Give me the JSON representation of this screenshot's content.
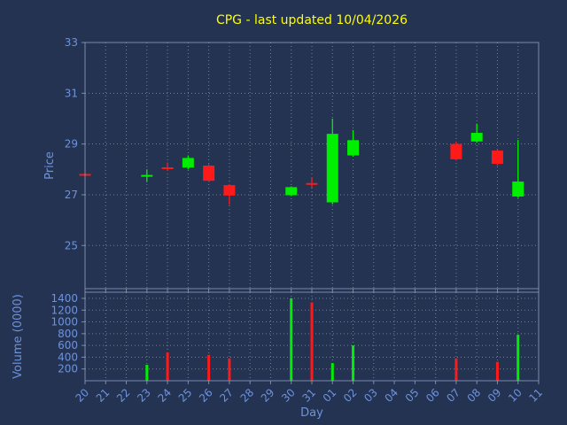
{
  "colors": {
    "background": "#243352",
    "title": "#ffff00",
    "label": "#6e93dc",
    "grid": "#c8d0e0",
    "spine": "#8a9ab8",
    "up": "#00ef00",
    "down": "#ff1a1a"
  },
  "chart_data": {
    "type": "candlestick",
    "title": "CPG - last updated 10/04/2026",
    "xlabel": "Day",
    "ylabel_price": "Price",
    "ylabel_volume": "Volume (0000)",
    "grid": "dotted",
    "legend": "none",
    "x_ticks": [
      "20",
      "21",
      "22",
      "23",
      "24",
      "25",
      "26",
      "27",
      "28",
      "29",
      "30",
      "31",
      "01",
      "02",
      "03",
      "04",
      "05",
      "06",
      "07",
      "08",
      "09",
      "10",
      "11"
    ],
    "price_ticks": [
      25,
      27,
      29,
      31,
      33
    ],
    "price_range": [
      23.3,
      33
    ],
    "volume_ticks": [
      200,
      400,
      600,
      800,
      1000,
      1200,
      1400
    ],
    "volume_range": [
      0,
      1505
    ],
    "candles": [
      {
        "day": "20",
        "open": 27.82,
        "high": 27.84,
        "low": 27.8,
        "close": 27.78
      },
      {
        "day": "23",
        "open": 27.72,
        "high": 28.0,
        "low": 27.5,
        "close": 27.78
      },
      {
        "day": "24",
        "open": 28.08,
        "high": 28.27,
        "low": 27.95,
        "close": 28.03
      },
      {
        "day": "25",
        "open": 28.07,
        "high": 28.55,
        "low": 28.0,
        "close": 28.45
      },
      {
        "day": "26",
        "open": 28.15,
        "high": 28.2,
        "low": 27.5,
        "close": 27.55
      },
      {
        "day": "27",
        "open": 27.38,
        "high": 27.42,
        "low": 26.6,
        "close": 26.97
      },
      {
        "day": "30",
        "open": 26.98,
        "high": 27.33,
        "low": 26.95,
        "close": 27.3
      },
      {
        "day": "31",
        "open": 27.46,
        "high": 27.68,
        "low": 27.28,
        "close": 27.42
      },
      {
        "day": "01",
        "open": 26.7,
        "high": 30.0,
        "low": 26.62,
        "close": 29.4
      },
      {
        "day": "02",
        "open": 28.55,
        "high": 29.55,
        "low": 28.5,
        "close": 29.15
      },
      {
        "day": "07",
        "open": 29.0,
        "high": 29.1,
        "low": 28.35,
        "close": 28.4
      },
      {
        "day": "08",
        "open": 29.1,
        "high": 29.8,
        "low": 29.05,
        "close": 29.44
      },
      {
        "day": "09",
        "open": 28.74,
        "high": 28.8,
        "low": 28.15,
        "close": 28.22
      },
      {
        "day": "10",
        "open": 26.93,
        "high": 29.16,
        "low": 26.88,
        "close": 27.52
      }
    ],
    "volumes": [
      {
        "day": "23",
        "value": 270
      },
      {
        "day": "24",
        "value": 480
      },
      {
        "day": "26",
        "value": 440
      },
      {
        "day": "27",
        "value": 380
      },
      {
        "day": "30",
        "value": 1400
      },
      {
        "day": "31",
        "value": 1330
      },
      {
        "day": "01",
        "value": 300
      },
      {
        "day": "02",
        "value": 600
      },
      {
        "day": "07",
        "value": 380
      },
      {
        "day": "09",
        "value": 320
      },
      {
        "day": "10",
        "value": 780
      }
    ]
  }
}
